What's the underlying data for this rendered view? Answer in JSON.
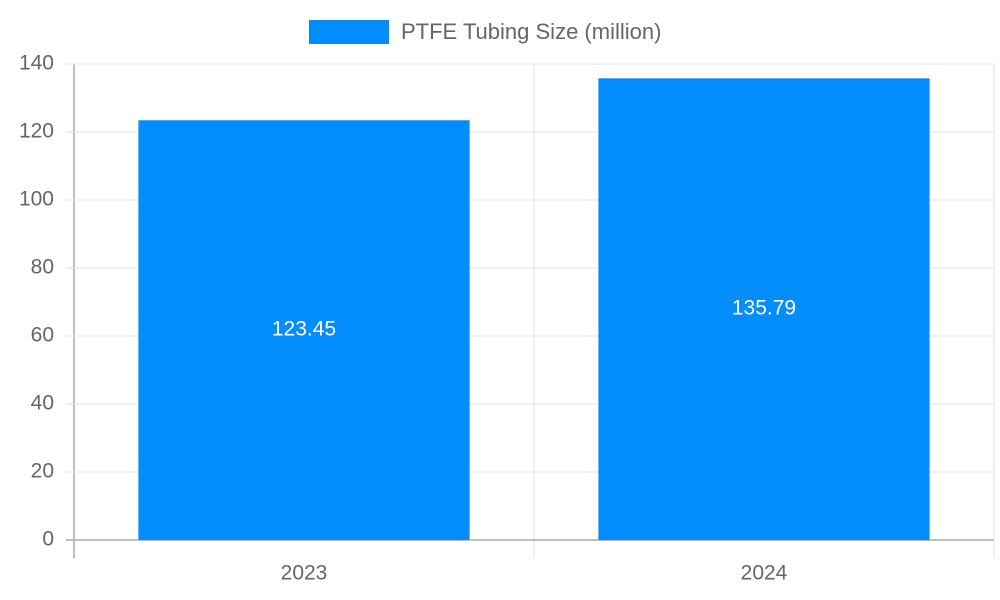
{
  "chart_data": {
    "type": "bar",
    "categories": [
      "2023",
      "2024"
    ],
    "series": [
      {
        "name": "PTFE Tubing Size (million)",
        "color": "#038cfc",
        "values": [
          123.45,
          135.79
        ]
      }
    ],
    "ylim": [
      0,
      140
    ],
    "yticks": [
      0,
      20,
      40,
      60,
      80,
      100,
      120,
      140
    ],
    "grid": true,
    "legend": "top"
  }
}
